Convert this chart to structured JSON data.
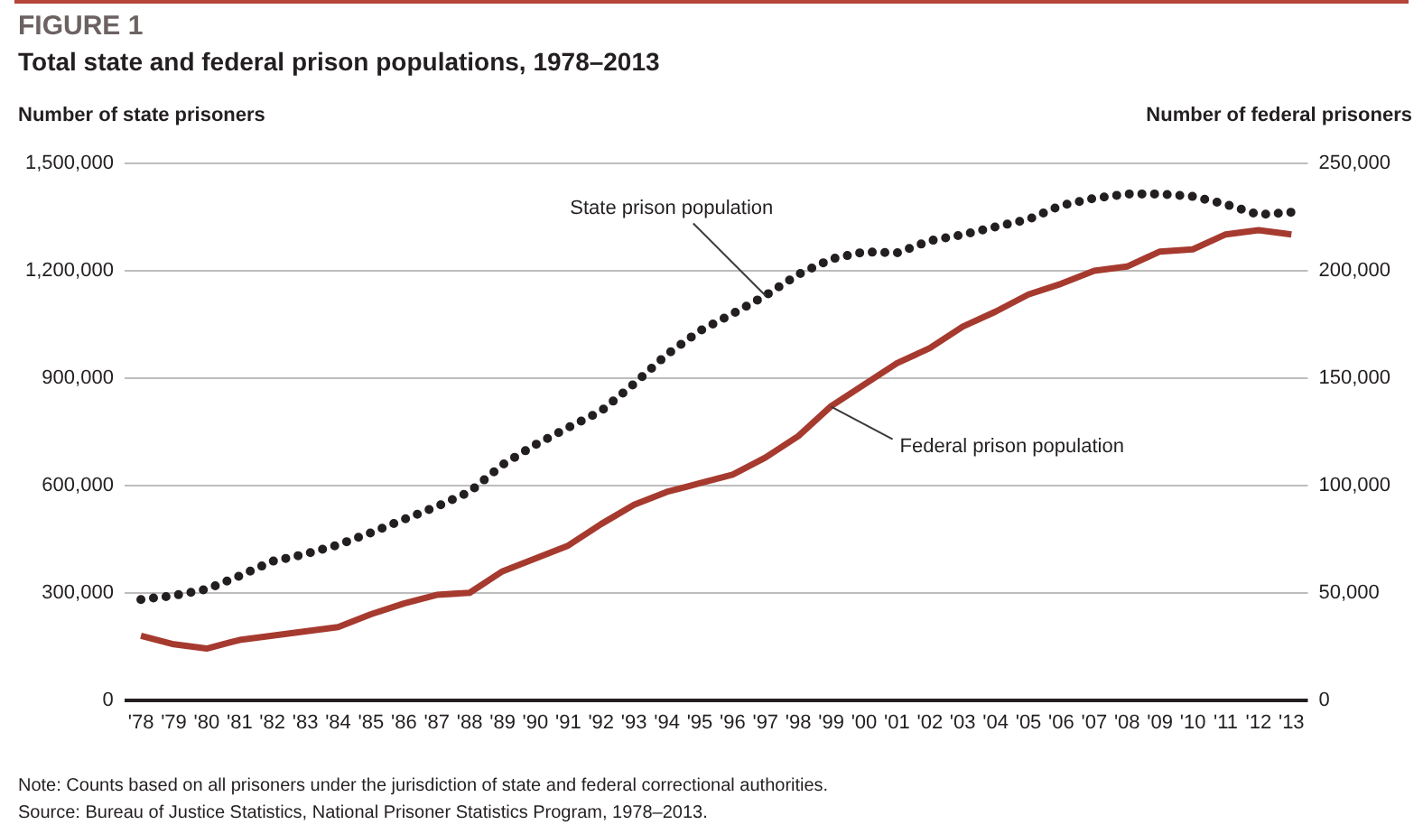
{
  "chart_data": {
    "type": "line",
    "title": "FIGURE 1",
    "subtitle": "Total state and federal prison populations, 1978–2013",
    "ylabel": "Number of state prisoners",
    "y2label": "Number of federal prisoners",
    "categories": [
      "'78",
      "'79",
      "'80",
      "'81",
      "'82",
      "'83",
      "'84",
      "'85",
      "'86",
      "'87",
      "'88",
      "'89",
      "'90",
      "'91",
      "'92",
      "'93",
      "'94",
      "'95",
      "'96",
      "'97",
      "'98",
      "'99",
      "'00",
      "'01",
      "'02",
      "'03",
      "'04",
      "'05",
      "'06",
      "'07",
      "'08",
      "'09",
      "'10",
      "'11",
      "'12",
      "'13"
    ],
    "series": [
      {
        "color": "#231f20",
        "line_style": "dotted",
        "values": [
          281000,
          292000,
          310000,
          347000,
          388000,
          408000,
          434000,
          468000,
          505000,
          541000,
          582000,
          658000,
          714000,
          762000,
          808000,
          884000,
          966000,
          1032000,
          1080000,
          1131000,
          1190000,
          1233000,
          1253000,
          1250000,
          1284000,
          1301000,
          1323000,
          1344000,
          1383000,
          1403000,
          1415000,
          1415000,
          1408000,
          1386000,
          1357000,
          1364000
        ]
      },
      {
        "color": "#a63a2f",
        "line_style": "solid",
        "axis": "y2",
        "values": [
          30000,
          26000,
          24000,
          28000,
          30000,
          32000,
          34000,
          40000,
          45000,
          49000,
          50000,
          60000,
          66000,
          72000,
          82000,
          91000,
          97000,
          101000,
          105000,
          113000,
          123000,
          137000,
          147000,
          157000,
          164000,
          174000,
          181000,
          189000,
          194000,
          200000,
          202000,
          209000,
          210000,
          217000,
          219000,
          217000
        ]
      }
    ],
    "ylim": [
      0,
      1500000
    ],
    "yticks": [
      0,
      {
        "value": 300000,
        "label": "300,000"
      },
      {
        "value": 600000,
        "label": "600,000"
      },
      {
        "value": 900000,
        "label": "900,000"
      },
      {
        "value": 1200000,
        "label": "1,200,000"
      },
      {
        "value": 1500000,
        "label": "1,500,000"
      }
    ],
    "y2lim": [
      0,
      250000
    ],
    "y2ticks": [
      0,
      {
        "value": 50000,
        "label": "50,000"
      },
      {
        "value": 100000,
        "label": "100,000"
      },
      {
        "value": 150000,
        "label": "150,000"
      },
      {
        "value": 200000,
        "label": "200,000"
      },
      {
        "value": 250000,
        "label": "250,000"
      }
    ],
    "grid": "y",
    "legend": false,
    "marker": "none",
    "annotations": [
      {
        "text": "State prison population",
        "x": "'97",
        "y": 1131000
      },
      {
        "text": "Federal prison population",
        "x": "'99",
        "y": 820000
      },
      "Note: Counts based on all prisoners under the jurisdiction of state and federal correctional authorities.",
      "Source: Bureau of Justice Statistics, National Prisoner Statistics Program, 1978–2013."
    ]
  }
}
